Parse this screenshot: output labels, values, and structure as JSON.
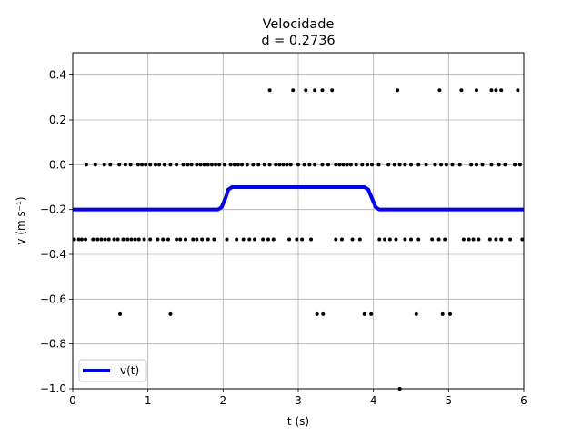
{
  "chart_data": {
    "type": "line",
    "title": "Velocidade",
    "subtitle": "d = 0.2736",
    "xlabel": "t (s)",
    "ylabel": "v (m s⁻¹)",
    "xlim": [
      0,
      6
    ],
    "ylim": [
      -1.0,
      0.5
    ],
    "grid": true,
    "legend_position": "lower left",
    "x_ticks": [
      0,
      1,
      2,
      3,
      4,
      5,
      6
    ],
    "x_tick_labels": [
      "0",
      "1",
      "2",
      "3",
      "4",
      "5",
      "6"
    ],
    "y_ticks": [
      -1.0,
      -0.8,
      -0.6,
      -0.4,
      -0.2,
      0.0,
      0.2,
      0.4
    ],
    "y_tick_labels": [
      "−1.0",
      "−0.8",
      "−0.6",
      "−0.4",
      "−0.2",
      "0.0",
      "0.2",
      "0.4"
    ],
    "series": [
      {
        "name": "v(t)",
        "kind": "line",
        "color": "#0000ff",
        "points": [
          [
            0,
            -0.2
          ],
          [
            1.93,
            -0.2
          ],
          [
            1.98,
            -0.19
          ],
          [
            2.03,
            -0.15
          ],
          [
            2.07,
            -0.11
          ],
          [
            2.12,
            -0.1
          ],
          [
            3.88,
            -0.1
          ],
          [
            3.93,
            -0.11
          ],
          [
            3.98,
            -0.15
          ],
          [
            4.03,
            -0.19
          ],
          [
            4.08,
            -0.2
          ],
          [
            6.0,
            -0.2
          ]
        ]
      },
      {
        "kind": "scatter",
        "color": "#000000",
        "points": [
          [
            2.62,
            0.333
          ],
          [
            2.93,
            0.333
          ],
          [
            3.1,
            0.333
          ],
          [
            3.22,
            0.333
          ],
          [
            3.32,
            0.333
          ],
          [
            3.45,
            0.333
          ],
          [
            4.32,
            0.333
          ],
          [
            4.88,
            0.333
          ],
          [
            5.17,
            0.333
          ],
          [
            5.37,
            0.333
          ],
          [
            5.57,
            0.333
          ],
          [
            5.63,
            0.333
          ],
          [
            5.7,
            0.333
          ],
          [
            5.92,
            0.333
          ],
          [
            0.18,
            0.0
          ],
          [
            0.3,
            0.0
          ],
          [
            0.42,
            0.0
          ],
          [
            0.5,
            0.0
          ],
          [
            0.62,
            0.0
          ],
          [
            0.7,
            0.0
          ],
          [
            0.77,
            0.0
          ],
          [
            0.87,
            0.0
          ],
          [
            0.92,
            0.0
          ],
          [
            0.97,
            0.0
          ],
          [
            1.03,
            0.0
          ],
          [
            1.1,
            0.0
          ],
          [
            1.15,
            0.0
          ],
          [
            1.22,
            0.0
          ],
          [
            1.3,
            0.0
          ],
          [
            1.38,
            0.0
          ],
          [
            1.47,
            0.0
          ],
          [
            1.53,
            0.0
          ],
          [
            1.58,
            0.0
          ],
          [
            1.65,
            0.0
          ],
          [
            1.7,
            0.0
          ],
          [
            1.75,
            0.0
          ],
          [
            1.8,
            0.0
          ],
          [
            1.85,
            0.0
          ],
          [
            1.9,
            0.0
          ],
          [
            1.95,
            0.0
          ],
          [
            2.02,
            0.0
          ],
          [
            2.1,
            0.0
          ],
          [
            2.15,
            0.0
          ],
          [
            2.2,
            0.0
          ],
          [
            2.25,
            0.0
          ],
          [
            2.32,
            0.0
          ],
          [
            2.4,
            0.0
          ],
          [
            2.47,
            0.0
          ],
          [
            2.55,
            0.0
          ],
          [
            2.62,
            0.0
          ],
          [
            2.7,
            0.0
          ],
          [
            2.75,
            0.0
          ],
          [
            2.8,
            0.0
          ],
          [
            2.85,
            0.0
          ],
          [
            2.9,
            0.0
          ],
          [
            3.0,
            0.0
          ],
          [
            3.08,
            0.0
          ],
          [
            3.15,
            0.0
          ],
          [
            3.22,
            0.0
          ],
          [
            3.32,
            0.0
          ],
          [
            3.4,
            0.0
          ],
          [
            3.5,
            0.0
          ],
          [
            3.55,
            0.0
          ],
          [
            3.6,
            0.0
          ],
          [
            3.65,
            0.0
          ],
          [
            3.7,
            0.0
          ],
          [
            3.77,
            0.0
          ],
          [
            3.85,
            0.0
          ],
          [
            3.92,
            0.0
          ],
          [
            3.98,
            0.0
          ],
          [
            4.07,
            0.0
          ],
          [
            4.2,
            0.0
          ],
          [
            4.28,
            0.0
          ],
          [
            4.35,
            0.0
          ],
          [
            4.42,
            0.0
          ],
          [
            4.5,
            0.0
          ],
          [
            4.6,
            0.0
          ],
          [
            4.7,
            0.0
          ],
          [
            4.82,
            0.0
          ],
          [
            4.9,
            0.0
          ],
          [
            4.97,
            0.0
          ],
          [
            5.05,
            0.0
          ],
          [
            5.15,
            0.0
          ],
          [
            5.3,
            0.0
          ],
          [
            5.37,
            0.0
          ],
          [
            5.45,
            0.0
          ],
          [
            5.57,
            0.0
          ],
          [
            5.67,
            0.0
          ],
          [
            5.75,
            0.0
          ],
          [
            5.88,
            0.0
          ],
          [
            5.95,
            0.0
          ],
          [
            0.02,
            -0.333
          ],
          [
            0.08,
            -0.333
          ],
          [
            0.12,
            -0.333
          ],
          [
            0.17,
            -0.333
          ],
          [
            0.27,
            -0.333
          ],
          [
            0.33,
            -0.333
          ],
          [
            0.38,
            -0.333
          ],
          [
            0.43,
            -0.333
          ],
          [
            0.48,
            -0.333
          ],
          [
            0.55,
            -0.333
          ],
          [
            0.6,
            -0.333
          ],
          [
            0.67,
            -0.333
          ],
          [
            0.73,
            -0.333
          ],
          [
            0.78,
            -0.333
          ],
          [
            0.83,
            -0.333
          ],
          [
            0.88,
            -0.333
          ],
          [
            0.95,
            -0.333
          ],
          [
            1.03,
            -0.333
          ],
          [
            1.13,
            -0.333
          ],
          [
            1.2,
            -0.333
          ],
          [
            1.27,
            -0.333
          ],
          [
            1.38,
            -0.333
          ],
          [
            1.43,
            -0.333
          ],
          [
            1.5,
            -0.333
          ],
          [
            1.6,
            -0.333
          ],
          [
            1.65,
            -0.333
          ],
          [
            1.72,
            -0.333
          ],
          [
            1.8,
            -0.333
          ],
          [
            1.88,
            -0.333
          ],
          [
            2.05,
            -0.333
          ],
          [
            2.18,
            -0.333
          ],
          [
            2.27,
            -0.333
          ],
          [
            2.35,
            -0.333
          ],
          [
            2.42,
            -0.333
          ],
          [
            2.53,
            -0.333
          ],
          [
            2.6,
            -0.333
          ],
          [
            2.67,
            -0.333
          ],
          [
            2.88,
            -0.333
          ],
          [
            2.98,
            -0.333
          ],
          [
            3.05,
            -0.333
          ],
          [
            3.17,
            -0.333
          ],
          [
            3.5,
            -0.333
          ],
          [
            3.58,
            -0.333
          ],
          [
            3.72,
            -0.333
          ],
          [
            3.82,
            -0.333
          ],
          [
            4.08,
            -0.333
          ],
          [
            4.15,
            -0.333
          ],
          [
            4.22,
            -0.333
          ],
          [
            4.3,
            -0.333
          ],
          [
            4.42,
            -0.333
          ],
          [
            4.5,
            -0.333
          ],
          [
            4.6,
            -0.333
          ],
          [
            4.78,
            -0.333
          ],
          [
            4.87,
            -0.333
          ],
          [
            4.95,
            -0.333
          ],
          [
            5.2,
            -0.333
          ],
          [
            5.27,
            -0.333
          ],
          [
            5.33,
            -0.333
          ],
          [
            5.4,
            -0.333
          ],
          [
            5.55,
            -0.333
          ],
          [
            5.63,
            -0.333
          ],
          [
            5.7,
            -0.333
          ],
          [
            5.82,
            -0.333
          ],
          [
            5.98,
            -0.333
          ],
          [
            0.63,
            -0.667
          ],
          [
            1.3,
            -0.667
          ],
          [
            3.25,
            -0.667
          ],
          [
            3.33,
            -0.667
          ],
          [
            3.88,
            -0.667
          ],
          [
            3.97,
            -0.667
          ],
          [
            4.57,
            -0.667
          ],
          [
            4.92,
            -0.667
          ],
          [
            5.02,
            -0.667
          ],
          [
            4.35,
            -1.0
          ]
        ]
      }
    ]
  }
}
